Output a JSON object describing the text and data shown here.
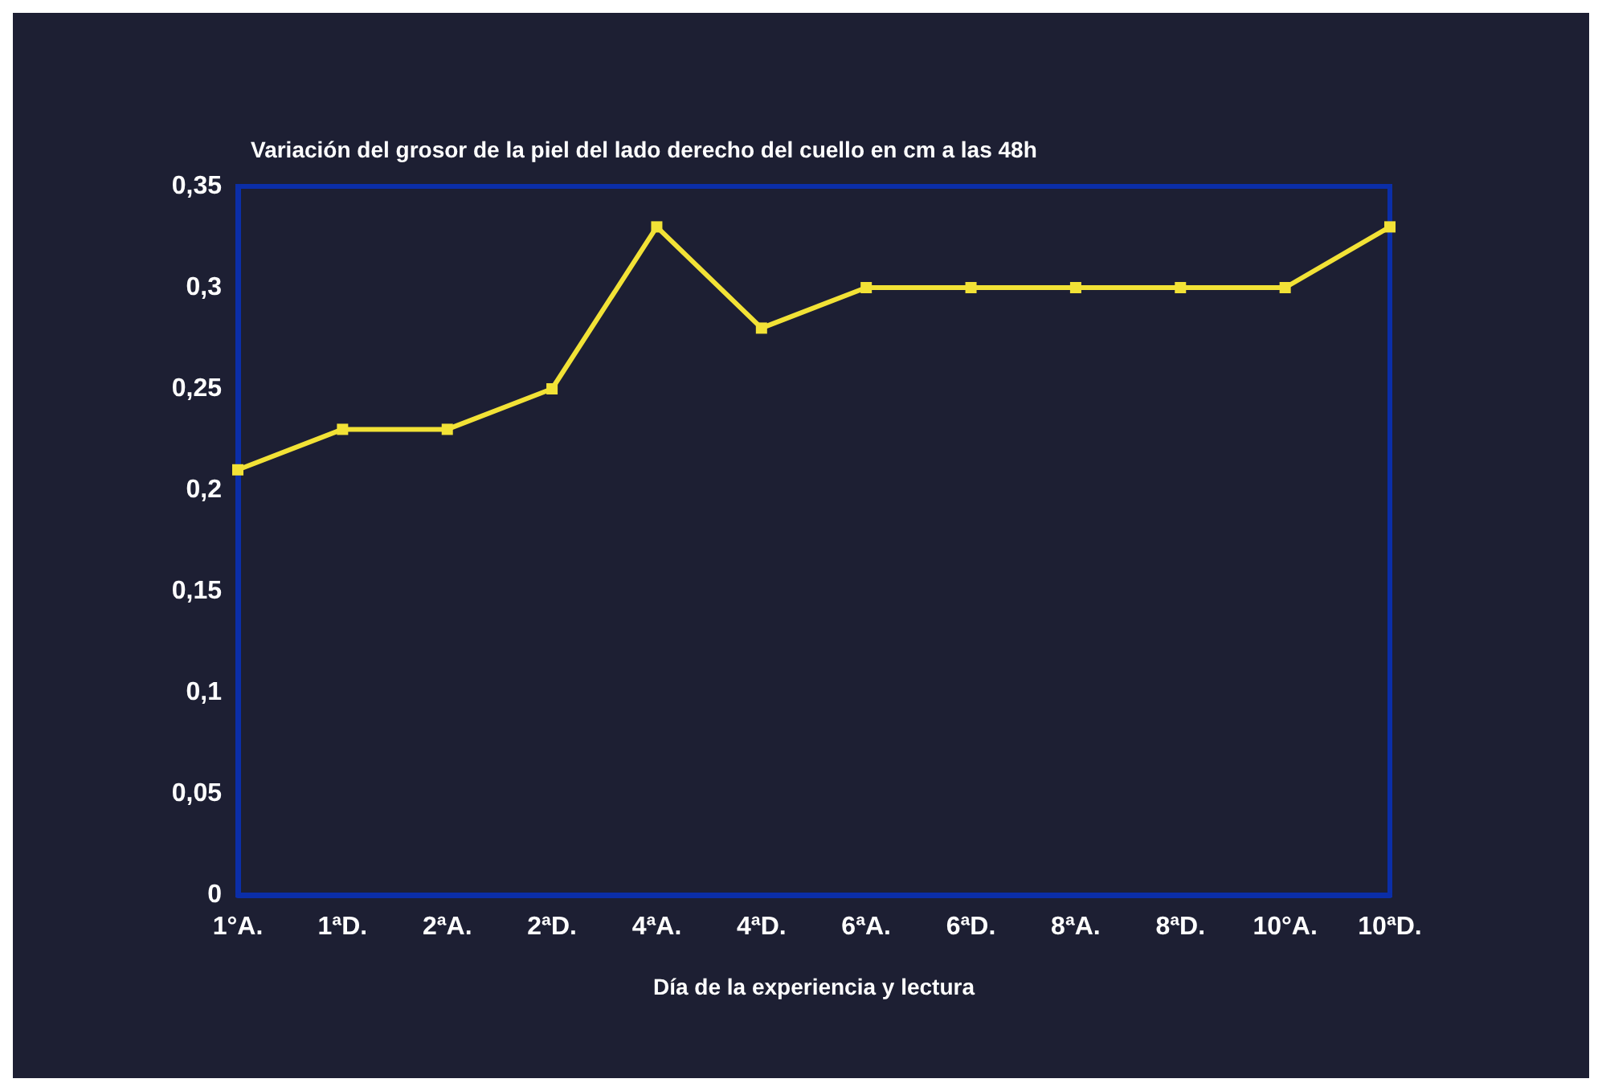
{
  "chart_data": {
    "type": "line",
    "title": "Variación del grosor de la piel del lado derecho del cuello en cm a las 48h",
    "xlabel": "Día de la experiencia y lectura",
    "categories": [
      "1°A.",
      "1ªD.",
      "2ªA.",
      "2ªD.",
      "4ªA.",
      "4ªD.",
      "6ªA.",
      "6ªD.",
      "8ªA.",
      "8ªD.",
      "10°A.",
      "10ªD."
    ],
    "series": [
      {
        "color": "#f2e236",
        "values": [
          0.21,
          0.23,
          0.23,
          0.25,
          0.33,
          0.28,
          0.3,
          0.3,
          0.3,
          0.3,
          0.3,
          0.33
        ]
      }
    ],
    "ylim": [
      0,
      0.35
    ],
    "yticks": [
      0,
      {
        "value": 0.05,
        "label": "0,05"
      },
      {
        "value": 0.1,
        "label": "0,1"
      },
      {
        "value": 0.15,
        "label": "0,15"
      },
      {
        "value": 0.2,
        "label": "0,2"
      },
      {
        "value": 0.25,
        "label": "0,25"
      },
      {
        "value": 0.3,
        "label": "0,3"
      },
      {
        "value": 0.35,
        "label": "0,35"
      }
    ],
    "grid": false,
    "marker": "square",
    "line_style": "solid"
  }
}
